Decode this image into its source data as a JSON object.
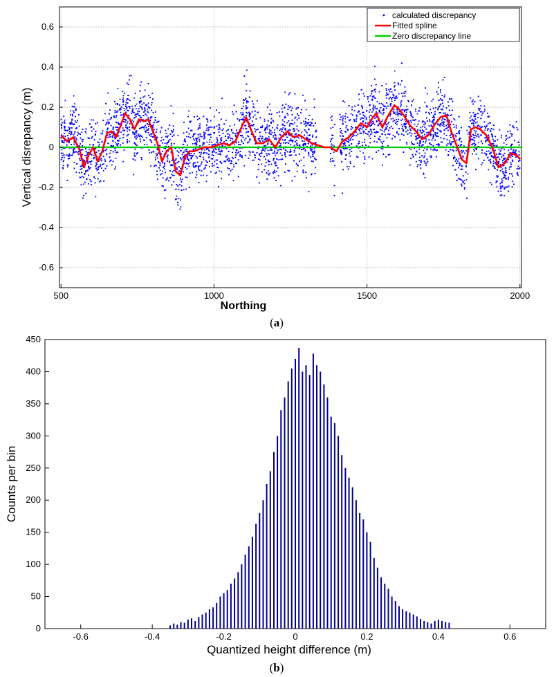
{
  "chart_data": [
    {
      "type": "scatter",
      "panel_caption": "a",
      "xlabel": "Northing",
      "ylabel": "Vertical disrepancy (m)",
      "xlim": [
        495,
        2005
      ],
      "ylim": [
        -0.7,
        0.7
      ],
      "xticks": [
        "500",
        "1000",
        "1500",
        "2000"
      ],
      "yticks": [
        "-0.6",
        "-0.4",
        "-0.2",
        "0",
        "0.2",
        "0.4",
        "0.6"
      ],
      "grid": true,
      "legend": {
        "position": "top-right",
        "entries": [
          "calculated discrepancy",
          "Fitted spline",
          "Zero discrepancy line"
        ]
      },
      "series": [
        {
          "name": "Fitted spline",
          "color": "#ff0000",
          "x": [
            500,
            520,
            540,
            560,
            575,
            590,
            605,
            620,
            635,
            650,
            665,
            680,
            695,
            710,
            725,
            740,
            755,
            770,
            785,
            800,
            815,
            830,
            845,
            860,
            875,
            890,
            905,
            920,
            935,
            950,
            970,
            990,
            1010,
            1030,
            1050,
            1070,
            1090,
            1105,
            1120,
            1140,
            1160,
            1180,
            1200,
            1220,
            1240,
            1260,
            1280,
            1300,
            1320,
            1340,
            1360,
            1380,
            1400,
            1420,
            1440,
            1460,
            1480,
            1500,
            1515,
            1530,
            1550,
            1570,
            1590,
            1605,
            1620,
            1640,
            1660,
            1680,
            1700,
            1720,
            1740,
            1760,
            1775,
            1790,
            1810,
            1825,
            1840,
            1855,
            1870,
            1890,
            1910,
            1930,
            1950,
            1970,
            1990,
            2000
          ],
          "y": [
            0.06,
            0.03,
            0.05,
            -0.01,
            -0.1,
            -0.04,
            0.0,
            -0.07,
            -0.02,
            0.07,
            0.08,
            0.05,
            0.11,
            0.17,
            0.14,
            0.09,
            0.14,
            0.13,
            0.14,
            0.08,
            0.02,
            -0.07,
            -0.02,
            0.0,
            -0.12,
            -0.14,
            -0.05,
            -0.02,
            -0.02,
            -0.01,
            0.0,
            0.0,
            0.01,
            0.02,
            0.01,
            0.03,
            0.1,
            0.15,
            0.09,
            0.02,
            0.02,
            0.04,
            0.0,
            0.05,
            0.08,
            0.05,
            0.06,
            0.04,
            0.02,
            0.01,
            0.0,
            0.0,
            -0.02,
            0.03,
            0.05,
            0.08,
            0.12,
            0.1,
            0.14,
            0.17,
            0.1,
            0.16,
            0.21,
            0.19,
            0.16,
            0.11,
            0.08,
            0.04,
            0.06,
            0.11,
            0.15,
            0.16,
            0.08,
            0.02,
            -0.06,
            -0.08,
            0.09,
            0.1,
            0.09,
            0.06,
            0.0,
            -0.1,
            -0.08,
            -0.03,
            -0.04,
            -0.06
          ]
        },
        {
          "name": "Zero discrepancy line",
          "color": "#00cc00",
          "x": [
            495,
            2005
          ],
          "y": [
            0,
            0
          ]
        },
        {
          "name": "calculated discrepancy",
          "color": "#0000ff",
          "points": "dense scatter of about 6000 points roughly centred on the fitted spline, spread between -0.35 m and 0.43 m"
        }
      ]
    },
    {
      "type": "bar",
      "panel_caption": "b",
      "xlabel": "Quantized height difference (m)",
      "ylabel": "Counts per bin",
      "xlim": [
        -0.7,
        0.7
      ],
      "ylim": [
        0,
        450
      ],
      "xticks": [
        "-0.6",
        "-0.4",
        "-0.2",
        "0",
        "0.2",
        "0.4",
        "0.6"
      ],
      "yticks": [
        "0",
        "50",
        "100",
        "150",
        "200",
        "250",
        "300",
        "350",
        "400",
        "450"
      ],
      "grid": false,
      "color": "#00008b",
      "categories": [
        -0.35,
        -0.34,
        -0.33,
        -0.32,
        -0.31,
        -0.3,
        -0.29,
        -0.28,
        -0.27,
        -0.26,
        -0.25,
        -0.24,
        -0.23,
        -0.22,
        -0.21,
        -0.2,
        -0.19,
        -0.18,
        -0.17,
        -0.16,
        -0.15,
        -0.14,
        -0.13,
        -0.12,
        -0.11,
        -0.1,
        -0.09,
        -0.08,
        -0.07,
        -0.06,
        -0.05,
        -0.04,
        -0.03,
        -0.02,
        -0.01,
        0.0,
        0.01,
        0.02,
        0.03,
        0.04,
        0.05,
        0.06,
        0.07,
        0.08,
        0.09,
        0.1,
        0.11,
        0.12,
        0.13,
        0.14,
        0.15,
        0.16,
        0.17,
        0.18,
        0.19,
        0.2,
        0.21,
        0.22,
        0.23,
        0.24,
        0.25,
        0.26,
        0.27,
        0.28,
        0.29,
        0.3,
        0.31,
        0.32,
        0.33,
        0.34,
        0.35,
        0.36,
        0.37,
        0.38,
        0.39,
        0.4,
        0.41,
        0.42,
        0.43
      ],
      "values": [
        5,
        8,
        6,
        10,
        9,
        14,
        16,
        12,
        18,
        22,
        25,
        30,
        33,
        40,
        50,
        55,
        60,
        70,
        78,
        88,
        100,
        115,
        128,
        143,
        163,
        180,
        200,
        225,
        245,
        275,
        300,
        340,
        360,
        385,
        405,
        420,
        437,
        400,
        410,
        395,
        428,
        410,
        400,
        380,
        360,
        330,
        320,
        300,
        270,
        250,
        235,
        220,
        200,
        180,
        170,
        150,
        135,
        110,
        95,
        80,
        70,
        62,
        50,
        43,
        35,
        30,
        27,
        25,
        22,
        19,
        15,
        12,
        10,
        8,
        12,
        14,
        12,
        10,
        9
      ]
    }
  ]
}
